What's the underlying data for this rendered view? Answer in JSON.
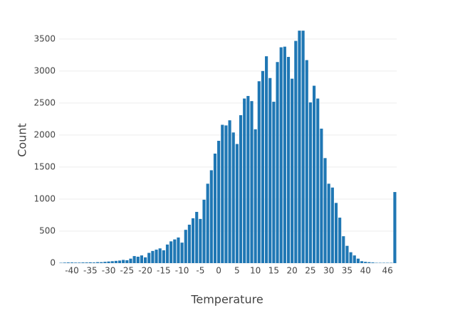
{
  "chart_data": {
    "type": "histogram",
    "x_label": "Temperature",
    "y_label": "Count",
    "color": "#1f77b4",
    "bins": [
      -43.5,
      -42.5,
      -41.5,
      -40.5,
      -39.5,
      -38.5,
      -37.5,
      -36.5,
      -35.5,
      -34.5,
      -33.5,
      -32.5,
      -31.5,
      -30.5,
      -29.5,
      -28.5,
      -27.5,
      -26.5,
      -25.5,
      -24.5,
      -23.5,
      -22.5,
      -21.5,
      -20.5,
      -19.5,
      -18.5,
      -17.5,
      -16.5,
      -15.5,
      -14.5,
      -13.5,
      -12.5,
      -11.5,
      -10.5,
      -9.5,
      -8.5,
      -7.5,
      -6.5,
      -5.5,
      -4.5,
      -3.5,
      -2.5,
      -1.5,
      -0.5,
      0.5,
      1.5,
      2.5,
      3.5,
      4.5,
      5.5,
      6.5,
      7.5,
      8.5,
      9.5,
      10.5,
      11.5,
      12.5,
      13.5,
      14.5,
      15.5,
      16.5,
      17.5,
      18.5,
      19.5,
      20.5,
      21.5,
      22.5,
      23.5,
      24.5,
      25.5,
      26.5,
      27.5,
      28.5,
      29.5,
      30.5,
      31.5,
      32.5,
      33.5,
      34.5,
      35.5,
      36.5,
      37.5,
      38.5,
      39.5,
      40.5,
      41.5,
      42.5,
      43.5,
      44.5,
      45.5,
      46.5,
      47.5,
      48.5
    ],
    "values": [
      5,
      8,
      10,
      10,
      8,
      8,
      10,
      10,
      12,
      10,
      15,
      15,
      20,
      25,
      30,
      35,
      40,
      50,
      45,
      70,
      110,
      100,
      120,
      90,
      160,
      190,
      210,
      230,
      200,
      290,
      340,
      370,
      400,
      320,
      520,
      600,
      700,
      800,
      690,
      990,
      1240,
      1450,
      1710,
      1910,
      2160,
      2150,
      2230,
      2040,
      1860,
      2310,
      2570,
      2610,
      2530,
      2090,
      2840,
      3000,
      3230,
      2890,
      2520,
      3140,
      3370,
      3380,
      3220,
      2880,
      3470,
      3630,
      3630,
      3170,
      2510,
      2770,
      2570,
      2100,
      1640,
      1240,
      1180,
      940,
      710,
      420,
      270,
      170,
      120,
      70,
      30,
      20,
      15,
      10,
      5,
      5,
      5,
      5,
      5,
      1110
    ],
    "xlim": [
      -43.5,
      48.5
    ],
    "ylim": [
      0,
      3820
    ],
    "xticks": [
      -40,
      -35,
      -30,
      -25,
      -20,
      -15,
      -10,
      -5,
      0,
      5,
      10,
      15,
      20,
      25,
      30,
      35,
      40,
      46
    ],
    "yticks": [
      0,
      500,
      1000,
      1500,
      2000,
      2500,
      3000,
      3500
    ],
    "grid": true
  }
}
